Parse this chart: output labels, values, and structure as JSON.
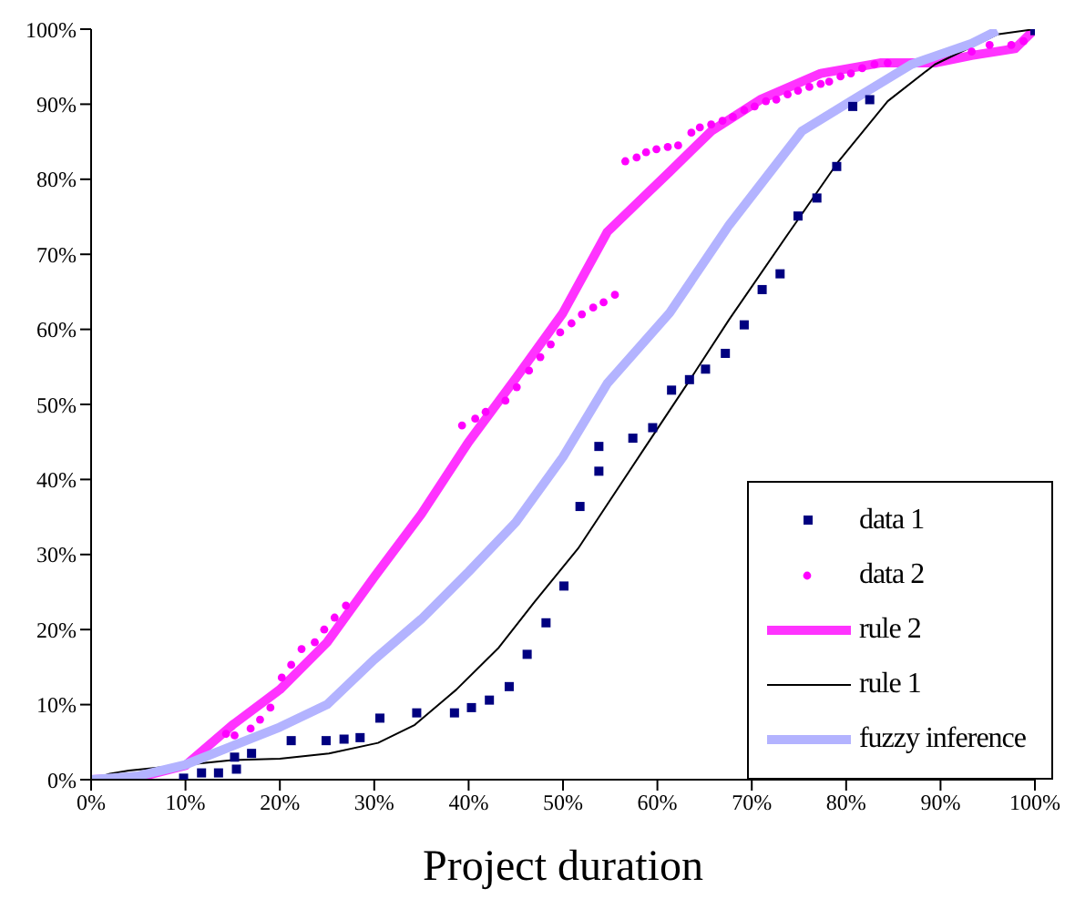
{
  "chart_data": {
    "type": "line",
    "xlabel": "Project duration",
    "xlim": [
      0,
      100
    ],
    "ylim": [
      0,
      100
    ],
    "xticks": [
      {
        "value": 0,
        "label": "0%"
      },
      {
        "value": 10,
        "label": "10%"
      },
      {
        "value": 20,
        "label": "20%"
      },
      {
        "value": 30,
        "label": "30%"
      },
      {
        "value": 40,
        "label": "40%"
      },
      {
        "value": 50,
        "label": "50%"
      },
      {
        "value": 60,
        "label": "60%"
      },
      {
        "value": 70,
        "label": "70%"
      },
      {
        "value": 80,
        "label": "80%"
      },
      {
        "value": 90,
        "label": "90%"
      },
      {
        "value": 100,
        "label": "100%"
      }
    ],
    "yticks": [
      {
        "value": 0,
        "label": "0%"
      },
      {
        "value": 10,
        "label": "10%"
      },
      {
        "value": 20,
        "label": "20%"
      },
      {
        "value": 30,
        "label": "30%"
      },
      {
        "value": 40,
        "label": "40%"
      },
      {
        "value": 50,
        "label": "50%"
      },
      {
        "value": 60,
        "label": "60%"
      },
      {
        "value": 70,
        "label": "70%"
      },
      {
        "value": 80,
        "label": "80%"
      },
      {
        "value": 90,
        "label": "90%"
      },
      {
        "value": 100,
        "label": "100%"
      }
    ],
    "grid": false,
    "legend": "bottom right",
    "line_style": "solid",
    "series": [
      {
        "name": "data 1",
        "type": "scatter",
        "marker": "square",
        "color": "#000080",
        "x": [
          9.8,
          11.7,
          13.5,
          15.4,
          15.2,
          17,
          21.2,
          24.9,
          26.8,
          28.5,
          30.6,
          34.5,
          38.5,
          40.3,
          42.2,
          44.3,
          46.2,
          48.2,
          50.1,
          51.8,
          53.8,
          53.8,
          57.4,
          59.5,
          61.5,
          63.4,
          65.1,
          67.2,
          69.2,
          71.1,
          73,
          74.9,
          76.9,
          79,
          80.7,
          82.5,
          100
        ],
        "values": [
          0.2,
          0.9,
          0.9,
          1.4,
          3,
          3.5,
          5.2,
          5.2,
          5.4,
          5.6,
          8.2,
          8.9,
          8.9,
          9.6,
          10.6,
          12.4,
          16.7,
          20.9,
          25.8,
          36.4,
          41.1,
          44.4,
          45.5,
          46.9,
          51.9,
          53.3,
          54.7,
          56.8,
          60.6,
          65.3,
          67.4,
          75.1,
          77.5,
          81.7,
          89.7,
          90.6,
          99.8
        ]
      },
      {
        "name": "data 2",
        "type": "scatter",
        "marker": "circle",
        "color": "#ff00ff",
        "x": [
          14.3,
          15.2,
          16.9,
          17.9,
          19,
          20.2,
          21.2,
          22.3,
          23.7,
          24.7,
          25.8,
          27,
          39.3,
          40.7,
          41.8,
          43.9,
          45.1,
          46.4,
          47.6,
          48.7,
          49.7,
          50.9,
          52,
          53.2,
          54.3,
          55.5,
          56.6,
          57.8,
          58.8,
          59.9,
          61.1,
          62.2,
          63.6,
          64.5,
          65.7,
          66.9,
          68,
          69.2,
          70.3,
          71.5,
          72.6,
          73.8,
          74.9,
          76.1,
          77.3,
          78.2,
          79.4,
          80.5,
          81.7,
          83,
          84.4,
          93.3,
          95.2,
          97.5,
          98.8
        ],
        "values": [
          6.1,
          5.9,
          6.8,
          8,
          9.6,
          13.6,
          15.3,
          17.4,
          18.3,
          20,
          21.6,
          23.2,
          47.2,
          48.1,
          49,
          50.5,
          52.3,
          54.5,
          56.3,
          58,
          59.6,
          60.8,
          62,
          62.9,
          63.6,
          64.6,
          82.4,
          82.9,
          83.6,
          84,
          84.3,
          84.5,
          86.2,
          86.9,
          87.3,
          87.8,
          88.3,
          89.2,
          89.7,
          90.4,
          90.6,
          91.3,
          91.8,
          92.3,
          92.7,
          93,
          93.7,
          94.1,
          94.8,
          95.3,
          95.5,
          97,
          97.9,
          97.9,
          98.4
        ]
      },
      {
        "name": "rule 2",
        "type": "line",
        "color": "#ff33ff",
        "x": [
          0,
          5,
          10,
          15,
          20,
          25,
          30,
          35,
          40,
          45,
          50,
          54.7,
          58,
          61.3,
          65.7,
          70.9,
          77.3,
          83.6,
          89.4,
          93.3,
          97.9,
          100
        ],
        "values": [
          0,
          0.3,
          1.9,
          7.3,
          12,
          18.3,
          27,
          35.4,
          45,
          53.5,
          62.2,
          73,
          77,
          81,
          86.4,
          90.6,
          94.1,
          95.5,
          95.5,
          96.5,
          97.4,
          100
        ]
      },
      {
        "name": "rule 1",
        "type": "line",
        "color": "#000000",
        "x": [
          0,
          2,
          4,
          15,
          20,
          25.2,
          30.4,
          34.3,
          38.7,
          43.2,
          47,
          51.6,
          58.6,
          63.2,
          67.6,
          74,
          79.2,
          84.4,
          89.4,
          96,
          100
        ],
        "values": [
          0,
          0.8,
          1.2,
          2.6,
          2.8,
          3.5,
          4.9,
          7.3,
          12,
          17.6,
          23.7,
          30.8,
          44.1,
          52.8,
          61.3,
          73,
          82.4,
          90.4,
          95.3,
          99.3,
          100
        ]
      },
      {
        "name": "fuzzy inference",
        "type": "line",
        "color": "#b3b3ff",
        "x": [
          0,
          5,
          10,
          15,
          20,
          25,
          30,
          35,
          40,
          45,
          50,
          54.7,
          61.3,
          67.6,
          75.3,
          80.5,
          86.9,
          93.3,
          96
        ],
        "values": [
          0,
          0.5,
          2,
          4.5,
          7,
          10,
          16,
          21.4,
          27.7,
          34.3,
          43,
          52.8,
          62.2,
          73.9,
          86.4,
          90.4,
          95.3,
          98.1,
          99.8
        ]
      }
    ]
  }
}
